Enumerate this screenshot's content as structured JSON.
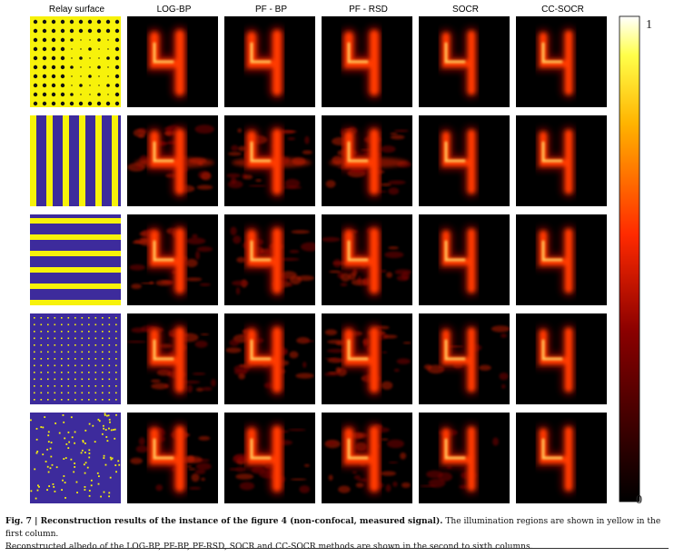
{
  "figure": {
    "columns": [
      "Relay surface",
      "LOG-BP",
      "PF - BP",
      "PF - RSD",
      "SOCR",
      "CC-SOCR"
    ],
    "rows": [
      "dots",
      "vertical-stripes",
      "horizontal-stripes",
      "sparse-grid",
      "random-points"
    ],
    "colorbar": {
      "max_label": "1",
      "min_label": "0",
      "colormap": "hot"
    },
    "relay_colors": {
      "background": "#3d2b9c",
      "illumination": "#f7f20a"
    }
  },
  "caption": {
    "figure_label": "Fig. 7 | Reconstruction results of the instance of the figure 4 (non-confocal, measured signal).",
    "line1_rest": " The illumination regions are shown in yellow in the first column.",
    "line2": "Reconstructed albedo of the LOG-BP, PF-BP, PF-RSD, SOCR and CC-SOCR methods are shown in the second to sixth columns."
  }
}
